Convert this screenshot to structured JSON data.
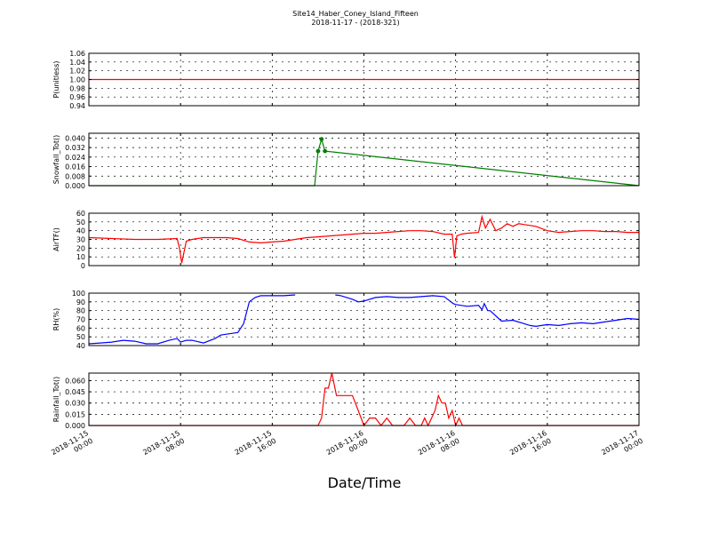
{
  "title": "Site14_Haber_Coney_Island_Fifteen",
  "subtitle": "2018-11-17 - (2018-321)",
  "xlabel": "Date/Time",
  "chart_data": [
    {
      "type": "line",
      "ylabel": "P(unitless)",
      "ylim": [
        0.94,
        1.06
      ],
      "yticks": [
        "0.94",
        "0.96",
        "0.98",
        "1.00",
        "1.02",
        "1.04",
        "1.06"
      ],
      "color": "#ff0000",
      "x_hours": [
        0,
        48
      ],
      "y": [
        1.0,
        1.0
      ]
    },
    {
      "type": "line",
      "ylabel": "Snowfall_Tot()",
      "ylim": [
        0,
        0.044
      ],
      "yticks": [
        "0.000",
        "0.008",
        "0.016",
        "0.024",
        "0.032",
        "0.040"
      ],
      "color": "#007f00",
      "markers": true,
      "x_hours": [
        0,
        19.7,
        20.0,
        20.3,
        20.6,
        48
      ],
      "y": [
        0,
        0,
        0.029,
        0.039,
        0.029,
        0
      ]
    },
    {
      "type": "line",
      "ylabel": "AirTF()",
      "ylim": [
        0,
        60
      ],
      "yticks": [
        "0",
        "10",
        "20",
        "30",
        "40",
        "50",
        "60"
      ],
      "color": "#ff0000",
      "x_hours": [
        0,
        2,
        4,
        6,
        7.7,
        7.9,
        8.1,
        8.5,
        9,
        10,
        11,
        12,
        13,
        14,
        15,
        16,
        17,
        18,
        19,
        20,
        21,
        22,
        23,
        24,
        25,
        26,
        27,
        28,
        29,
        30,
        31,
        31.7,
        31.9,
        32.1,
        32.5,
        33,
        34,
        34.3,
        34.6,
        35,
        35.5,
        36,
        36.5,
        37,
        37.5,
        38,
        39,
        40,
        41,
        42,
        43,
        44,
        45,
        46,
        47,
        48
      ],
      "y": [
        32,
        31,
        30,
        30,
        31,
        20,
        3,
        28,
        30,
        32,
        32,
        32,
        31,
        27,
        26,
        27,
        28,
        30,
        32,
        33,
        34,
        35,
        36,
        37,
        37,
        38,
        39,
        40,
        40,
        39,
        36,
        36,
        9,
        34,
        36,
        37,
        38,
        56,
        43,
        53,
        40,
        43,
        48,
        45,
        48,
        47,
        45,
        40,
        38,
        39,
        40,
        40,
        39,
        39,
        38,
        38
      ]
    },
    {
      "type": "line",
      "ylabel": "RH(%)",
      "ylim": [
        40,
        100
      ],
      "yticks": [
        "40",
        "50",
        "60",
        "70",
        "80",
        "90",
        "100"
      ],
      "color": "#0000ff",
      "x_hours": [
        0,
        1,
        2,
        3,
        4,
        5,
        6,
        7,
        7.7,
        8,
        8.5,
        9,
        10,
        11,
        11.5,
        12,
        13,
        13.5,
        14,
        14.5,
        15,
        16,
        17,
        18,
        null,
        21.5,
        22,
        23,
        23.5,
        24,
        25,
        26,
        27,
        28,
        29,
        30,
        31,
        31.8,
        32,
        33,
        34,
        34.3,
        34.5,
        34.8,
        35,
        36,
        37,
        38,
        38.5,
        39,
        40,
        41,
        42,
        43,
        44,
        45,
        46,
        47,
        48
      ],
      "y": [
        42,
        43,
        44,
        46,
        45,
        42,
        42,
        46,
        48,
        44,
        46,
        46,
        43,
        48,
        52,
        53,
        55,
        65,
        90,
        95,
        97,
        97,
        97,
        98,
        null,
        98,
        97,
        93,
        90,
        91,
        95,
        96,
        95,
        95,
        96,
        97,
        96,
        88,
        87,
        85,
        86,
        81,
        88,
        80,
        80,
        68,
        69,
        65,
        63,
        62,
        64,
        63,
        65,
        66,
        65,
        67,
        69,
        71,
        70
      ]
    },
    {
      "type": "line",
      "ylabel": "Rainfall_Tot()",
      "ylim": [
        0,
        0.07
      ],
      "yticks": [
        "0.000",
        "0.015",
        "0.030",
        "0.045",
        "0.060"
      ],
      "color": "#ff0000",
      "x_hours": [
        0,
        20,
        20.3,
        20.6,
        20.9,
        21.2,
        21.6,
        22,
        23,
        23.5,
        24,
        24.5,
        25,
        25.5,
        26,
        26.5,
        27,
        27.5,
        28,
        28.5,
        29,
        29.3,
        29.6,
        29.9,
        30.2,
        30.5,
        30.8,
        31.1,
        31.4,
        31.7,
        32,
        32.3,
        32.6,
        48
      ],
      "y": [
        0,
        0,
        0.01,
        0.05,
        0.05,
        0.07,
        0.04,
        0.04,
        0.04,
        0.02,
        0,
        0.01,
        0.01,
        0,
        0.01,
        0,
        0,
        0,
        0.01,
        0,
        0,
        0.01,
        0,
        0.01,
        0.02,
        0.04,
        0.03,
        0.03,
        0.01,
        0.02,
        0,
        0.01,
        0,
        0
      ]
    }
  ],
  "x_axis": {
    "start": "2018-11-15 00:00",
    "end": "2018-11-17 00:00",
    "ticks": [
      {
        "hours": 0,
        "l1": "2018-11-15",
        "l2": "00:00"
      },
      {
        "hours": 8,
        "l1": "2018-11-15",
        "l2": "08:00"
      },
      {
        "hours": 16,
        "l1": "2018-11-15",
        "l2": "16:00"
      },
      {
        "hours": 24,
        "l1": "2018-11-16",
        "l2": "00:00"
      },
      {
        "hours": 32,
        "l1": "2018-11-16",
        "l2": "08:00"
      },
      {
        "hours": 40,
        "l1": "2018-11-16",
        "l2": "16:00"
      },
      {
        "hours": 48,
        "l1": "2018-11-17",
        "l2": "00:00"
      }
    ]
  }
}
